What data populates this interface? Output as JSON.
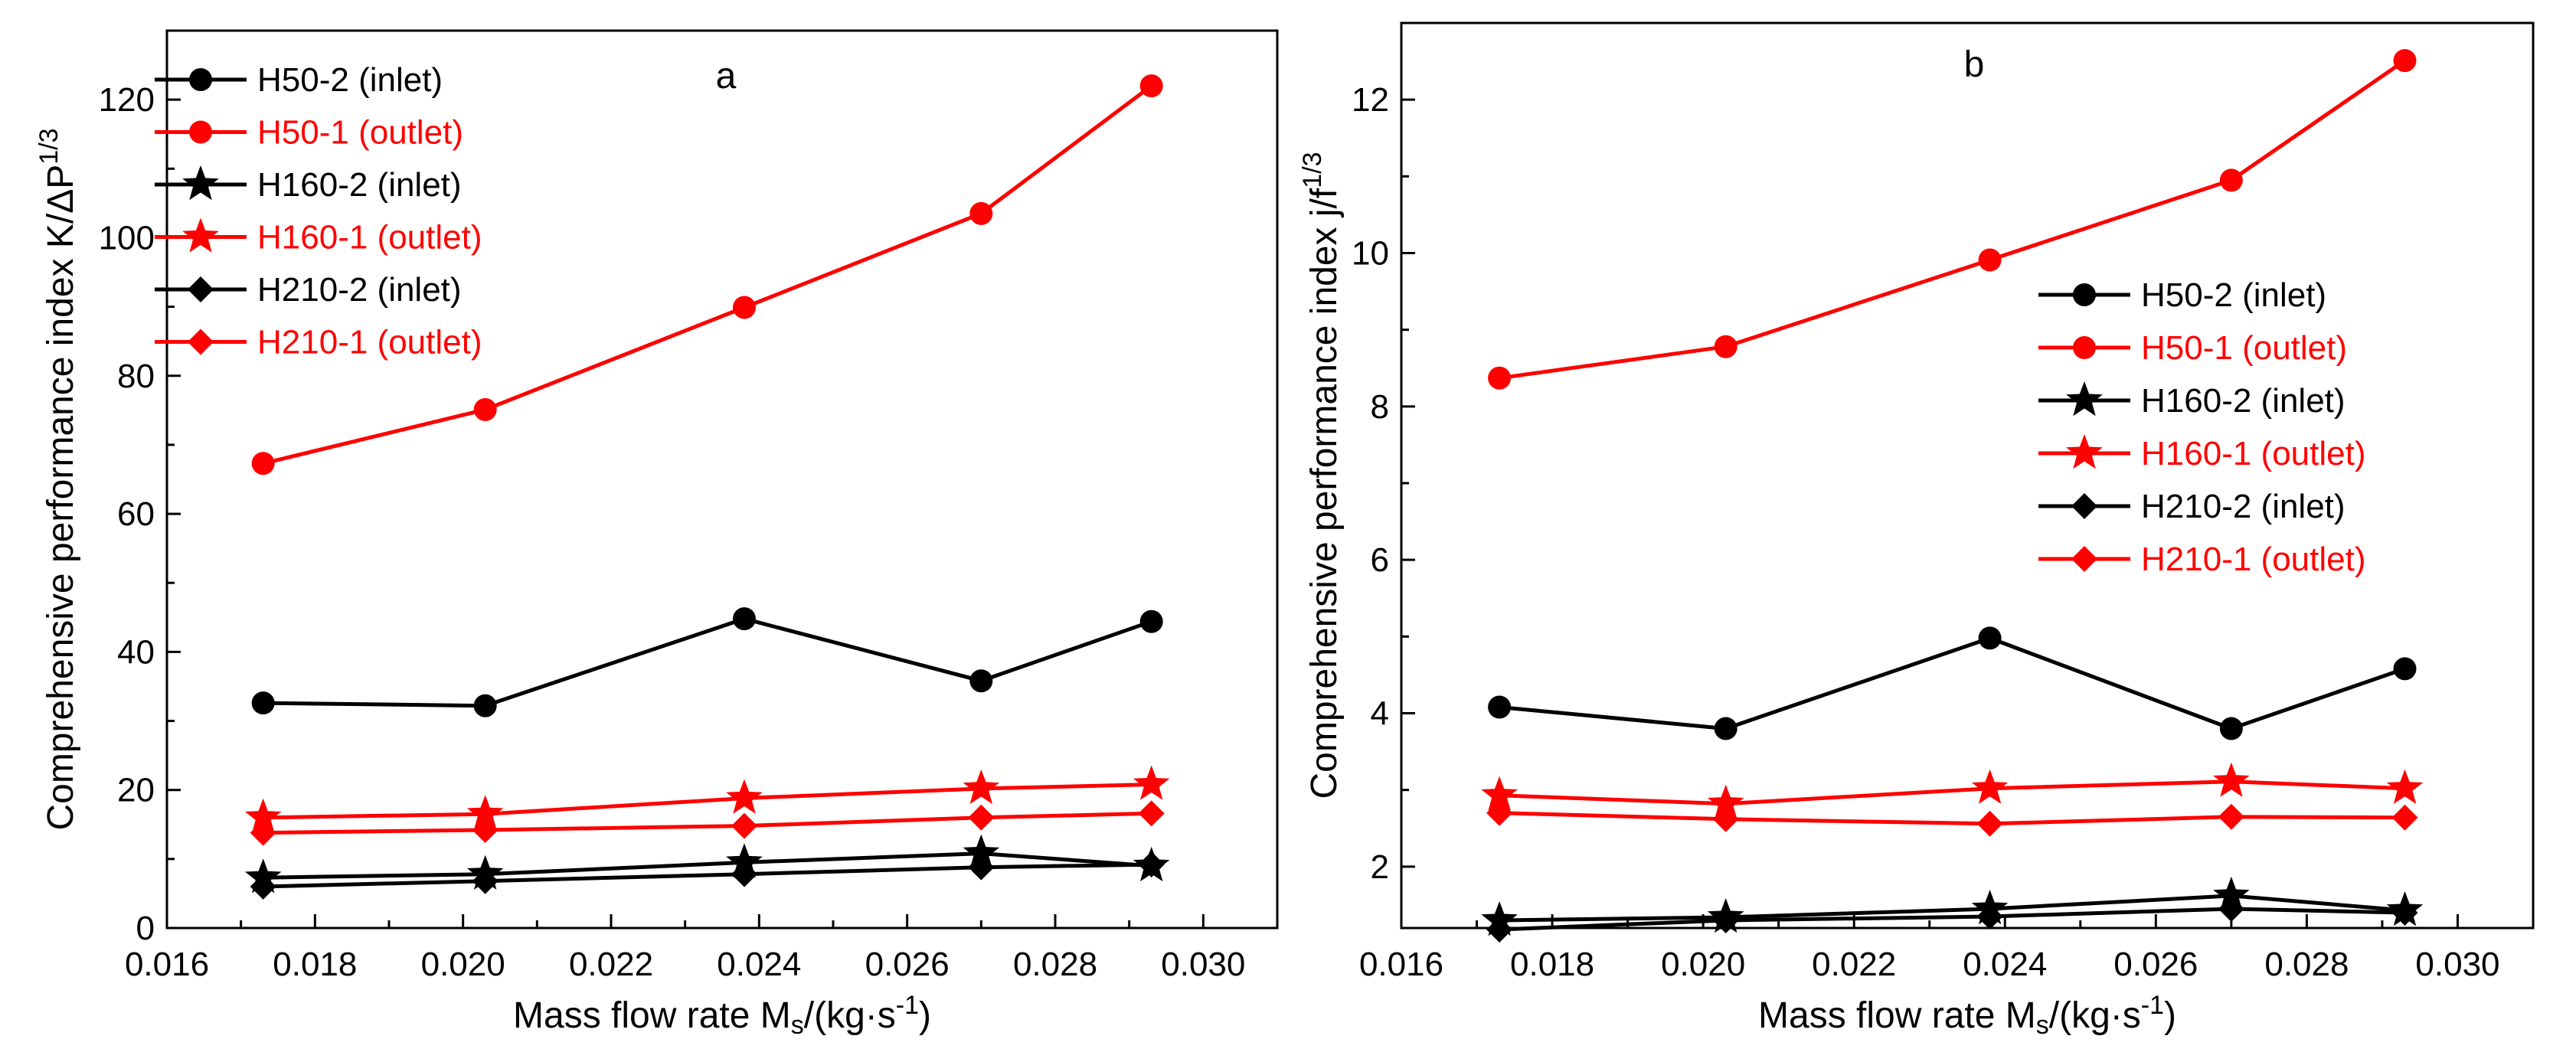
{
  "chart_data": [
    {
      "type": "line",
      "panel_label": "a",
      "xlabel_main": "Mass flow rate M",
      "xlabel_sub": "s",
      "xlabel_mid": "/(kg·s",
      "xlabel_sup": "-1",
      "xlabel_end": ")",
      "ylabel_main": "Comprehensive performance index K/ΔP",
      "ylabel_sup": "1/3",
      "xlim": [
        0.016,
        0.031
      ],
      "ylim": [
        0,
        130
      ],
      "xticks": [
        "0.016",
        "0.018",
        "0.020",
        "0.022",
        "0.024",
        "0.026",
        "0.028",
        "0.030"
      ],
      "yticks": [
        "0",
        "20",
        "40",
        "60",
        "80",
        "100",
        "120"
      ],
      "legend_position": "top-left",
      "x": [
        0.0173,
        0.0203,
        0.0238,
        0.027,
        0.0293
      ],
      "series": [
        {
          "name": "H50-2 (inlet)",
          "color": "#000000",
          "marker": "circle",
          "values": [
            32.6,
            32.2,
            44.8,
            35.8,
            44.4
          ]
        },
        {
          "name": "H50-1 (outlet)",
          "color": "#ff0000",
          "marker": "circle",
          "values": [
            67.3,
            75.1,
            89.9,
            103.5,
            122.0
          ]
        },
        {
          "name": "H160-2 (inlet)",
          "color": "#000000",
          "marker": "star",
          "values": [
            7.3,
            7.8,
            9.5,
            10.8,
            9.0
          ]
        },
        {
          "name": "H160-1 (outlet)",
          "color": "#ff0000",
          "marker": "star",
          "values": [
            16.0,
            16.5,
            18.8,
            20.2,
            20.8
          ]
        },
        {
          "name": "H210-2 (inlet)",
          "color": "#000000",
          "marker": "diamond",
          "values": [
            6.0,
            6.8,
            7.8,
            8.8,
            9.2
          ]
        },
        {
          "name": "H210-1 (outlet)",
          "color": "#ff0000",
          "marker": "diamond",
          "values": [
            13.8,
            14.2,
            14.8,
            16.0,
            16.6
          ]
        }
      ]
    },
    {
      "type": "line",
      "panel_label": "b",
      "xlabel_main": "Mass flow rate M",
      "xlabel_sub": "s",
      "xlabel_mid": "/(kg·s",
      "xlabel_sup": "-1",
      "xlabel_end": ")",
      "ylabel_main": "Comprehensive performance index j/f",
      "ylabel_sup": "1/3",
      "xlim": [
        0.016,
        0.031
      ],
      "ylim": [
        1.2,
        13.0
      ],
      "xticks": [
        "0.016",
        "0.018",
        "0.020",
        "0.022",
        "0.024",
        "0.026",
        "0.028",
        "0.030"
      ],
      "yticks": [
        "2",
        "4",
        "6",
        "8",
        "10",
        "12"
      ],
      "legend_position": "middle-right",
      "x": [
        0.0173,
        0.0203,
        0.0238,
        0.027,
        0.0293
      ],
      "series": [
        {
          "name": "H50-2 (inlet)",
          "color": "#000000",
          "marker": "circle",
          "values": [
            4.08,
            3.8,
            4.98,
            3.8,
            4.58
          ]
        },
        {
          "name": "H50-1 (outlet)",
          "color": "#ff0000",
          "marker": "circle",
          "values": [
            8.37,
            8.78,
            9.91,
            10.95,
            12.51
          ]
        },
        {
          "name": "H160-2 (inlet)",
          "color": "#000000",
          "marker": "star",
          "values": [
            1.3,
            1.34,
            1.45,
            1.62,
            1.43
          ]
        },
        {
          "name": "H160-1 (outlet)",
          "color": "#ff0000",
          "marker": "star",
          "values": [
            2.93,
            2.82,
            3.02,
            3.11,
            3.02
          ]
        },
        {
          "name": "H210-2 (inlet)",
          "color": "#000000",
          "marker": "diamond",
          "values": [
            1.18,
            1.3,
            1.35,
            1.45,
            1.4
          ]
        },
        {
          "name": "H210-1 (outlet)",
          "color": "#ff0000",
          "marker": "diamond",
          "values": [
            2.7,
            2.62,
            2.56,
            2.65,
            2.64
          ]
        }
      ]
    }
  ]
}
